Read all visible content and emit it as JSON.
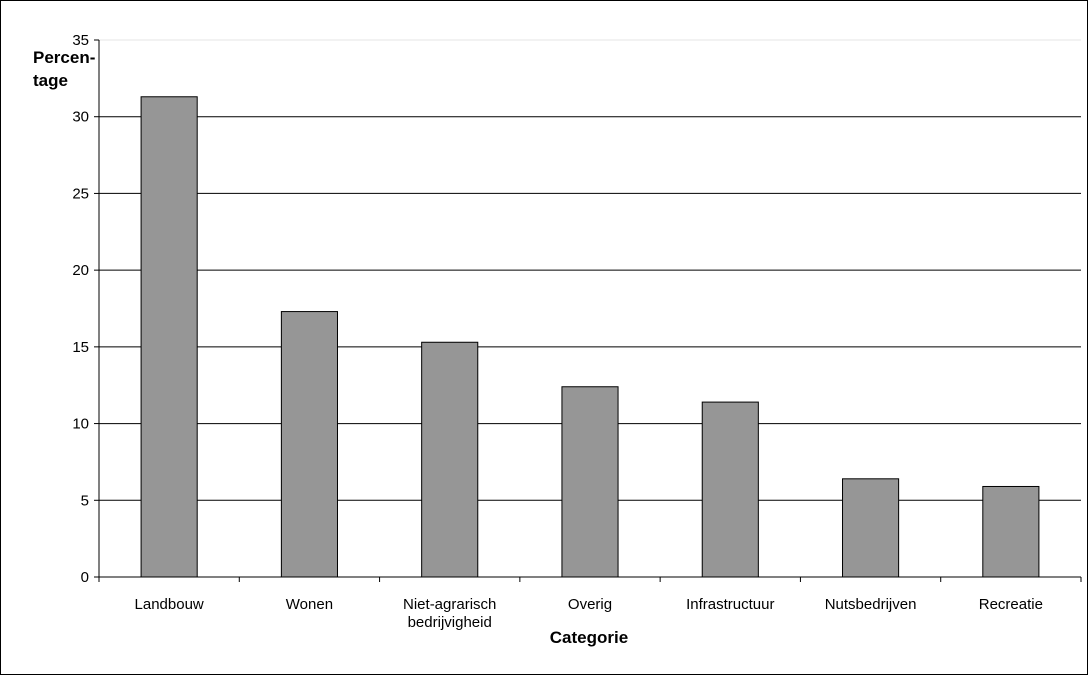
{
  "chart_data": {
    "type": "bar",
    "ylabel": [
      "Percen-",
      "tage"
    ],
    "xlabel": "Categorie",
    "categories": [
      [
        "Landbouw"
      ],
      [
        "Wonen"
      ],
      [
        "Niet-agrarisch",
        "bedrijvigheid"
      ],
      [
        "Overig"
      ],
      [
        "Infrastructuur"
      ],
      [
        "Nutsbedrijven"
      ],
      [
        "Recreatie"
      ]
    ],
    "values": [
      31.3,
      17.3,
      15.3,
      12.4,
      11.4,
      6.4,
      5.9
    ],
    "ylim": [
      0,
      35
    ],
    "yticks": [
      0,
      5,
      10,
      15,
      20,
      25,
      30,
      35
    ],
    "grid": true,
    "legend": "none",
    "bar_color": "#969696"
  }
}
